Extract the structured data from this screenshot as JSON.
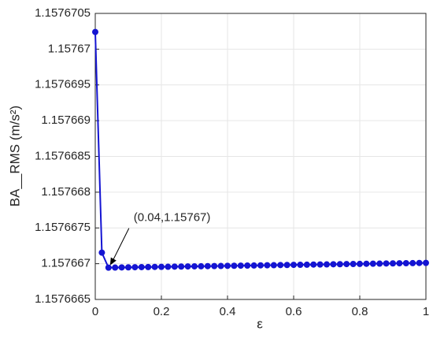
{
  "chart_data": {
    "type": "line",
    "x_label": "ε",
    "y_label": "BA__RMS (m/s²)",
    "annotation": "(0.04,1.15767)",
    "color": "#1414d2",
    "grid": true,
    "xlim": [
      0,
      1
    ],
    "xticks": [
      0,
      0.2,
      0.4,
      0.6,
      0.8,
      1
    ],
    "ylim": [
      1.1576665,
      1.1576705
    ],
    "yticks": [
      1.1576665,
      1.157667,
      1.1576675,
      1.157668,
      1.1576685,
      1.157669,
      1.1576695,
      1.15767,
      1.1576705
    ],
    "x": [
      0,
      0.02,
      0.04,
      0.06,
      0.08,
      0.1,
      0.12,
      0.14,
      0.16,
      0.18,
      0.2,
      0.22,
      0.24,
      0.26,
      0.28,
      0.3,
      0.32,
      0.34,
      0.36,
      0.38,
      0.4,
      0.42,
      0.44,
      0.46,
      0.48,
      0.5,
      0.52,
      0.54,
      0.56,
      0.58,
      0.6,
      0.62,
      0.64,
      0.66,
      0.68,
      0.7,
      0.72,
      0.74,
      0.76,
      0.78,
      0.8,
      0.82,
      0.84,
      0.86,
      0.88,
      0.9,
      0.92,
      0.94,
      0.96,
      0.98,
      1
    ],
    "values": [
      1.15767024,
      1.1576671545,
      1.157666945,
      1.157666946,
      1.157666948,
      1.157666949,
      1.157666951,
      1.157666952,
      1.157666953,
      1.157666955,
      1.157666956,
      1.157666957,
      1.157666959,
      1.15766696,
      1.157666962,
      1.157666963,
      1.157666964,
      1.157666966,
      1.157666967,
      1.157666968,
      1.15766697,
      1.157666971,
      1.157666973,
      1.157666974,
      1.157666975,
      1.157666977,
      1.157666978,
      1.157666979,
      1.157666981,
      1.157666982,
      1.157666984,
      1.157666985,
      1.157666986,
      1.157666988,
      1.157666989,
      1.15766699,
      1.157666992,
      1.157666993,
      1.157666995,
      1.157666996,
      1.157666997,
      1.157666999,
      1.157667,
      1.157667001,
      1.157667003,
      1.157667004,
      1.157667006,
      1.157667007,
      1.157667008,
      1.15766701,
      1.157667011
    ]
  }
}
